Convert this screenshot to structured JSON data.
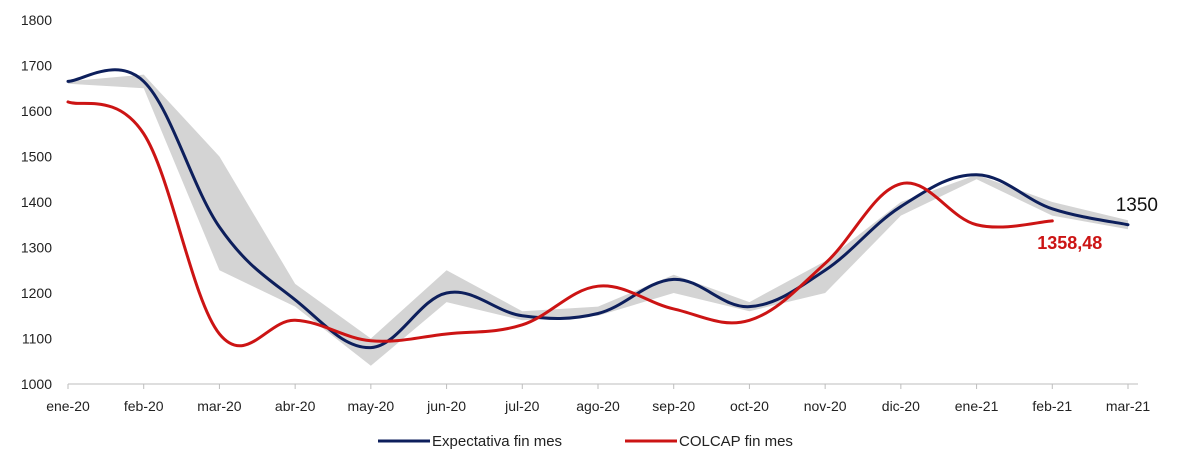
{
  "chart_data": {
    "type": "line",
    "categories": [
      "ene-20",
      "feb-20",
      "mar-20",
      "abr-20",
      "may-20",
      "jun-20",
      "jul-20",
      "ago-20",
      "sep-20",
      "oct-20",
      "nov-20",
      "dic-20",
      "ene-21",
      "feb-21",
      "mar-21"
    ],
    "ylim": [
      1000,
      1800
    ],
    "yticks": [
      1000,
      1100,
      1200,
      1300,
      1400,
      1500,
      1600,
      1700,
      1800
    ],
    "grid": false,
    "legend_position": "bottom",
    "colors": {
      "expectativa": "#0d1f5c",
      "colcap": "#cc1414",
      "band": "#d4d4d4"
    },
    "band": {
      "x": [
        "ene-20",
        "feb-20",
        "mar-20",
        "abr-20",
        "may-20",
        "jun-20",
        "jul-20",
        "ago-20",
        "sep-20",
        "oct-20",
        "nov-20",
        "dic-20",
        "ene-21",
        "feb-21",
        "mar-21"
      ],
      "upper": [
        1665,
        1680,
        1500,
        1220,
        1100,
        1250,
        1160,
        1170,
        1240,
        1180,
        1270,
        1400,
        1460,
        1400,
        1360
      ],
      "lower": [
        1660,
        1650,
        1250,
        1170,
        1040,
        1180,
        1140,
        1150,
        1200,
        1160,
        1200,
        1370,
        1450,
        1370,
        1340
      ]
    },
    "series": [
      {
        "name": "Expectativa fin mes",
        "x": [
          "ene-20",
          "feb-20",
          "mar-20",
          "abr-20",
          "may-20",
          "jun-20",
          "jul-20",
          "ago-20",
          "sep-20",
          "oct-20",
          "nov-20",
          "dic-20",
          "ene-21",
          "feb-21",
          "mar-21"
        ],
        "values": [
          1665,
          1665,
          1345,
          1185,
          1080,
          1200,
          1150,
          1155,
          1230,
          1170,
          1250,
          1390,
          1460,
          1385,
          1350
        ]
      },
      {
        "name": "COLCAP fin mes",
        "x": [
          "ene-20",
          "feb-20",
          "mar-20",
          "abr-20",
          "may-20",
          "jun-20",
          "jul-20",
          "ago-20",
          "sep-20",
          "oct-20",
          "nov-20",
          "dic-20",
          "ene-21",
          "feb-21"
        ],
        "values": [
          1620,
          1550,
          1110,
          1140,
          1095,
          1110,
          1130,
          1215,
          1165,
          1140,
          1265,
          1440,
          1350,
          1358.48
        ]
      }
    ],
    "annotations": [
      {
        "text": "1350",
        "series": "Expectativa fin mes",
        "color": "#111111"
      },
      {
        "text": "1358,48",
        "series": "COLCAP fin mes",
        "color": "#cc1414"
      }
    ]
  }
}
